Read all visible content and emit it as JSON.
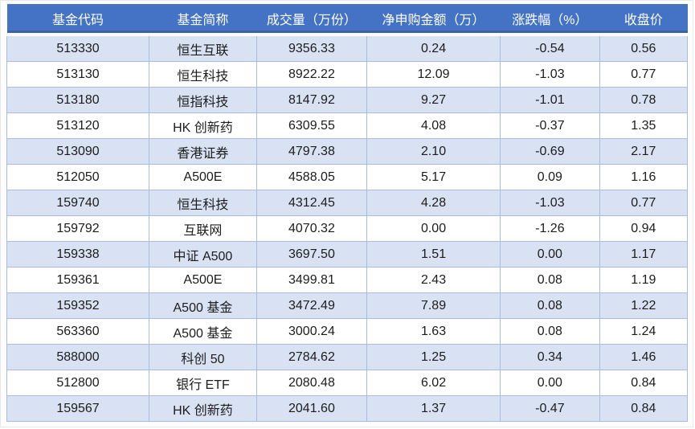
{
  "chart_data": {
    "type": "table",
    "columns": [
      {
        "key": "code",
        "label": "基金代码"
      },
      {
        "key": "name",
        "label": "基金简称"
      },
      {
        "key": "volume",
        "label": "成交量（万份）"
      },
      {
        "key": "net_subscription",
        "label": "净申购金额（万）"
      },
      {
        "key": "change_pct",
        "label": "涨跌幅（%）"
      },
      {
        "key": "close_price",
        "label": "收盘价"
      }
    ],
    "rows": [
      [
        "513330",
        "恒生互联",
        "9356.33",
        "0.24",
        "-0.54",
        "0.56"
      ],
      [
        "513130",
        "恒生科技",
        "8922.22",
        "12.09",
        "-1.03",
        "0.77"
      ],
      [
        "513180",
        "恒指科技",
        "8147.92",
        "9.27",
        "-1.01",
        "0.78"
      ],
      [
        "513120",
        "HK 创新药",
        "6309.55",
        "4.08",
        "-0.37",
        "1.35"
      ],
      [
        "513090",
        "香港证券",
        "4797.38",
        "2.10",
        "-0.69",
        "2.17"
      ],
      [
        "512050",
        "A500E",
        "4588.05",
        "5.17",
        "0.09",
        "1.16"
      ],
      [
        "159740",
        "恒生科技",
        "4312.45",
        "4.28",
        "-1.03",
        "0.77"
      ],
      [
        "159792",
        "互联网",
        "4070.32",
        "0.00",
        "-1.26",
        "0.94"
      ],
      [
        "159338",
        "中证 A500",
        "3697.50",
        "1.51",
        "0.00",
        "1.17"
      ],
      [
        "159361",
        "A500E",
        "3499.81",
        "2.43",
        "0.08",
        "1.19"
      ],
      [
        "159352",
        "A500 基金",
        "3472.49",
        "7.89",
        "0.08",
        "1.22"
      ],
      [
        "563360",
        "A500 基金",
        "3000.24",
        "1.63",
        "0.08",
        "1.24"
      ],
      [
        "588000",
        "科创 50",
        "2784.62",
        "1.25",
        "0.34",
        "1.46"
      ],
      [
        "512800",
        "银行 ETF",
        "2080.48",
        "6.02",
        "0.00",
        "0.84"
      ],
      [
        "159567",
        "HK 创新药",
        "2041.60",
        "1.37",
        "-0.47",
        "0.84"
      ]
    ]
  },
  "colors": {
    "header_bg": "#4472C4",
    "header_text": "#FFFFFF",
    "header_bottom_band": "#3B62A6",
    "row_alt_bg": "#D9E2F3",
    "row_bg": "#FFFFFF",
    "cell_border": "#A9BCDE",
    "cell_text": "#1C1C1C"
  }
}
